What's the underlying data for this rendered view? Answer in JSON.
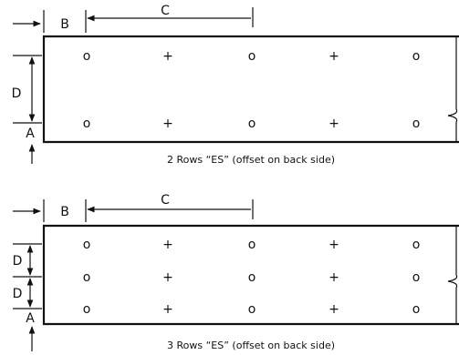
{
  "labels": {
    "a": "A",
    "b": "B",
    "c": "C",
    "d": "D"
  },
  "diagram_1": {
    "caption": "2 Rows “ES” (offset on back side)"
  },
  "diagram_2": {
    "caption": "3 Rows “ES” (offset on back side)"
  },
  "symbols": {
    "open": "o",
    "cross": "+"
  }
}
